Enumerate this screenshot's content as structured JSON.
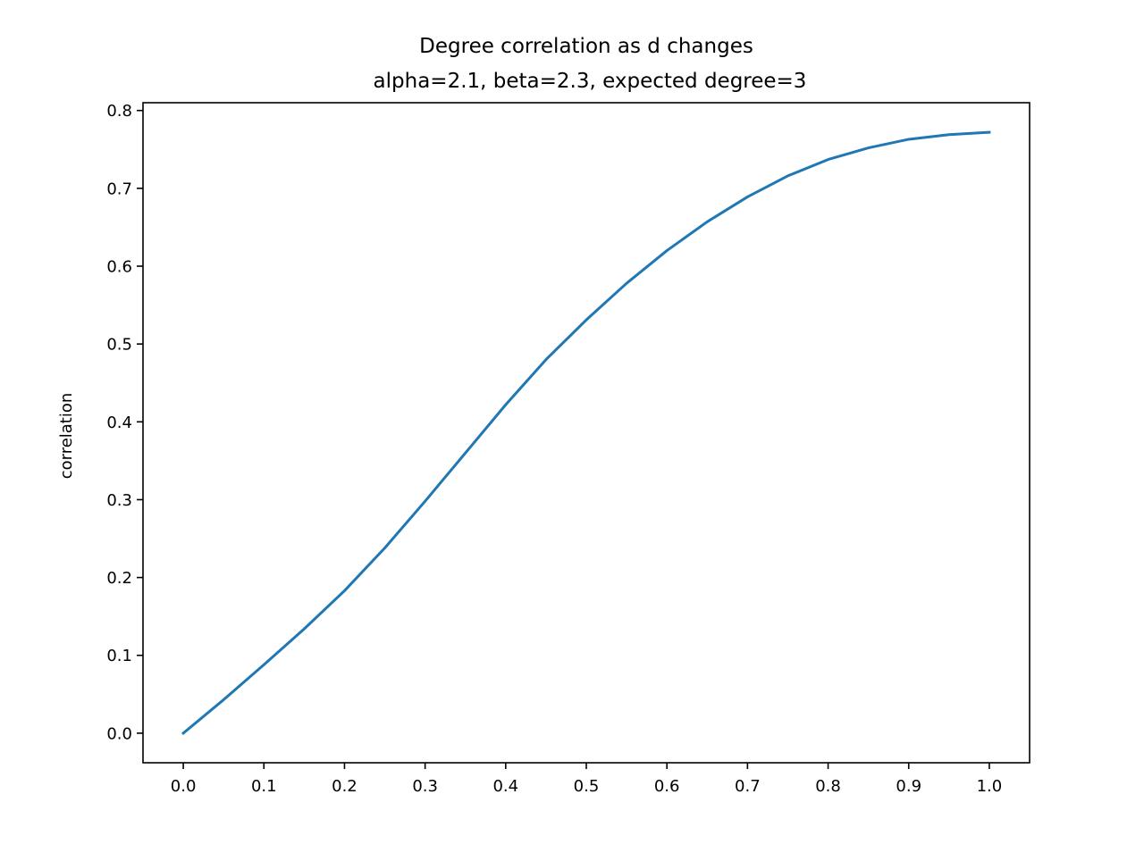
{
  "chart_data": {
    "type": "line",
    "title": "Degree correlation as d changes",
    "subtitle": "alpha=2.1, beta=2.3, expected degree=3",
    "xlabel": "",
    "ylabel": "correlation",
    "xlim": [
      -0.05,
      1.05
    ],
    "ylim": [
      -0.038,
      0.81
    ],
    "x_ticks": [
      "0.0",
      "0.1",
      "0.2",
      "0.3",
      "0.4",
      "0.5",
      "0.6",
      "0.7",
      "0.8",
      "0.9",
      "1.0"
    ],
    "y_ticks": [
      "0.0",
      "0.1",
      "0.2",
      "0.3",
      "0.4",
      "0.5",
      "0.6",
      "0.7",
      "0.8"
    ],
    "grid": false,
    "legend": "none",
    "series": [
      {
        "color": "#1f77b4",
        "x": [
          0.0,
          0.05,
          0.1,
          0.15,
          0.2,
          0.25,
          0.3,
          0.35,
          0.4,
          0.45,
          0.5,
          0.55,
          0.6,
          0.65,
          0.7,
          0.75,
          0.8,
          0.85,
          0.9,
          0.95,
          1.0
        ],
        "y": [
          0.0,
          0.043,
          0.088,
          0.134,
          0.183,
          0.238,
          0.298,
          0.36,
          0.422,
          0.48,
          0.531,
          0.578,
          0.62,
          0.657,
          0.689,
          0.716,
          0.737,
          0.752,
          0.763,
          0.769,
          0.772
        ]
      }
    ]
  }
}
